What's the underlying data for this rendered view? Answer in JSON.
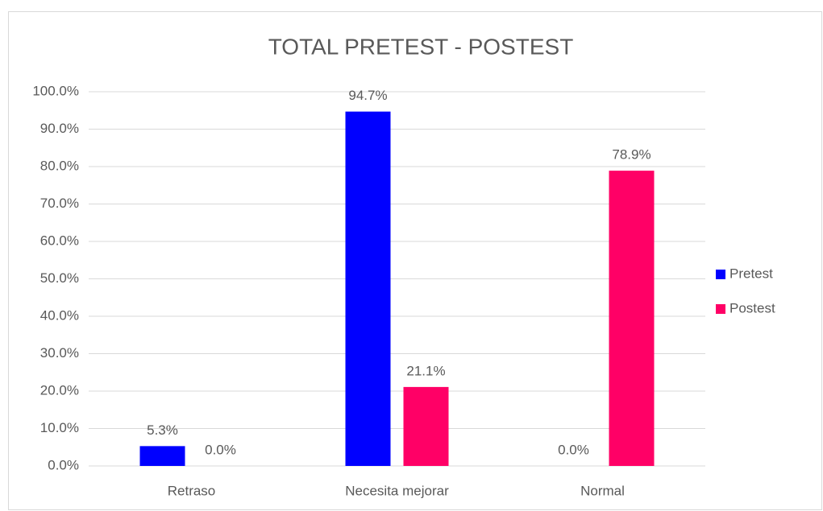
{
  "chart_data": {
    "type": "bar",
    "title": "TOTAL PRETEST - POSTEST",
    "categories": [
      "Retraso",
      "Necesita mejorar",
      "Normal"
    ],
    "series": [
      {
        "name": "Pretest",
        "color": "#0000ff",
        "values": [
          5.3,
          94.7,
          0.0
        ],
        "value_labels": [
          "5.3%",
          "94.7%",
          "0.0%"
        ]
      },
      {
        "name": "Postest",
        "color": "#ff0066",
        "values": [
          0.0,
          21.1,
          78.9
        ],
        "value_labels": [
          "0.0%",
          "21.1%",
          "78.9%"
        ]
      }
    ],
    "ylim": [
      0,
      100
    ],
    "yticks": [
      {
        "value": 0,
        "label": "0.0%"
      },
      {
        "value": 10,
        "label": "10.0%"
      },
      {
        "value": 20,
        "label": "20.0%"
      },
      {
        "value": 30,
        "label": "30.0%"
      },
      {
        "value": 40,
        "label": "40.0%"
      },
      {
        "value": 50,
        "label": "50.0%"
      },
      {
        "value": 60,
        "label": "60.0%"
      },
      {
        "value": 70,
        "label": "70.0%"
      },
      {
        "value": 80,
        "label": "80.0%"
      },
      {
        "value": 90,
        "label": "90.0%"
      },
      {
        "value": 100,
        "label": "100.0%"
      }
    ],
    "grid": true,
    "legend": "right"
  }
}
